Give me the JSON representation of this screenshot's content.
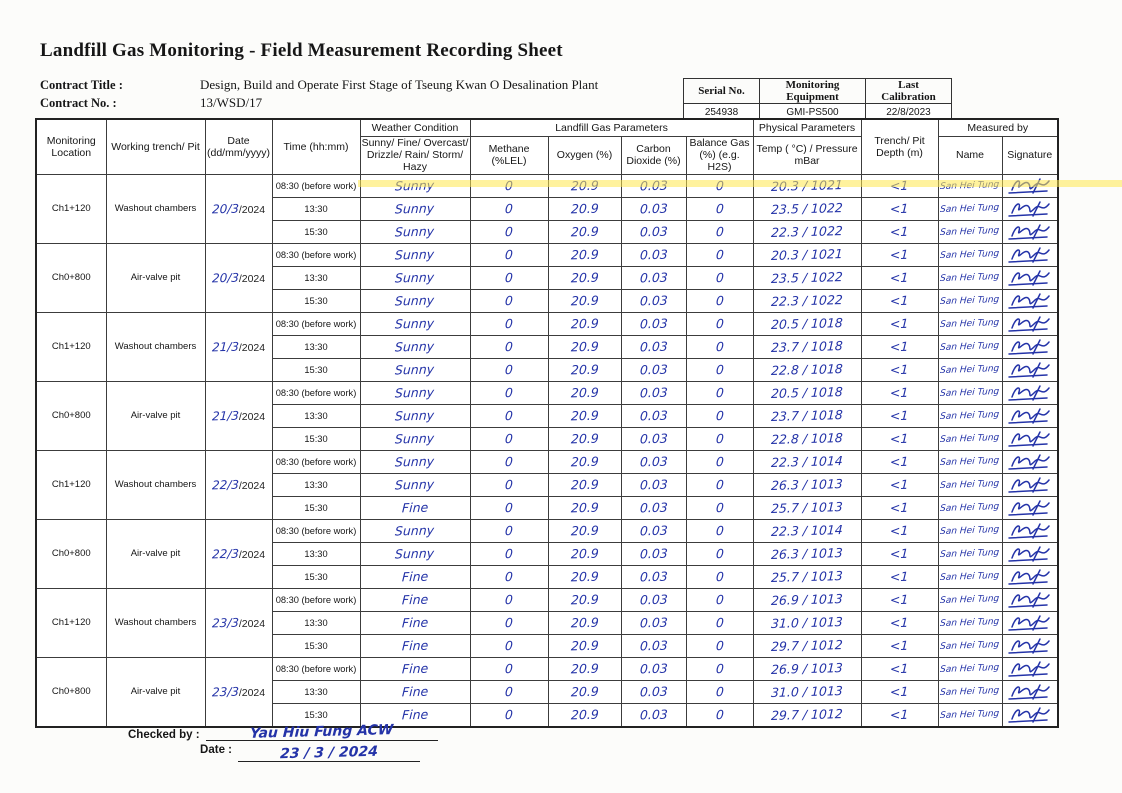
{
  "page": {
    "title": "Landfill Gas Monitoring - Field Measurement Recording Sheet"
  },
  "contract": {
    "title_label": "Contract Title :",
    "title_value": "Design, Build and Operate First Stage of Tseung Kwan O Desalination Plant",
    "no_label": "Contract No. :",
    "no_value": "13/WSD/17"
  },
  "equipment": {
    "serial_header": "Serial No.",
    "equipment_header": "Monitoring Equipment",
    "calibration_header": "Last Calibration",
    "serial_value": "254938",
    "equipment_value": "GMI-PS500",
    "calibration_value": "22/8/2023"
  },
  "table": {
    "headers": {
      "monitoring_location": "Monitoring Location",
      "working_trench": "Working trench/ Pit",
      "date": "Date (dd/mm/yyyy)",
      "time": "Time (hh:mm)",
      "weather": "Weather Condition",
      "weather_sub": "Sunny/ Fine/ Overcast/ Drizzle/ Rain/ Storm/ Hazy",
      "gas_group": "Landfill Gas Parameters",
      "methane": "Methane (%LEL)",
      "oxygen": "Oxygen (%)",
      "co2": "Carbon Dioxide (%)",
      "balance": "Balance Gas (%) (e.g. H2S)",
      "physical_group": "Physical Parameters",
      "temp_pressure": "Temp ( °C) / Pressure mBar",
      "depth": "Trench/ Pit Depth (m)",
      "measured_by": "Measured by",
      "name": "Name",
      "signature": "Signature"
    },
    "date_print": "/2024",
    "groups": [
      {
        "location": "Ch1+120",
        "trench": "Washout chambers",
        "date_hand": "20/3",
        "rows": [
          {
            "time": "08:30 (before work)",
            "weather": "Sunny",
            "methane": "0",
            "oxygen": "20.9",
            "co2": "0.03",
            "balance": "0",
            "temp_pressure": "20.3 / 1021",
            "depth": "<1",
            "name": "San Hei Tung"
          },
          {
            "time": "13:30",
            "weather": "Sunny",
            "methane": "0",
            "oxygen": "20.9",
            "co2": "0.03",
            "balance": "0",
            "temp_pressure": "23.5 / 1022",
            "depth": "<1",
            "name": "San Hei Tung"
          },
          {
            "time": "15:30",
            "weather": "Sunny",
            "methane": "0",
            "oxygen": "20.9",
            "co2": "0.03",
            "balance": "0",
            "temp_pressure": "22.3 / 1022",
            "depth": "<1",
            "name": "San Hei Tung"
          }
        ]
      },
      {
        "location": "Ch0+800",
        "trench": "Air-valve pit",
        "date_hand": "20/3",
        "rows": [
          {
            "time": "08:30 (before work)",
            "weather": "Sunny",
            "methane": "0",
            "oxygen": "20.9",
            "co2": "0.03",
            "balance": "0",
            "temp_pressure": "20.3 / 1021",
            "depth": "<1",
            "name": "San Hei Tung"
          },
          {
            "time": "13:30",
            "weather": "Sunny",
            "methane": "0",
            "oxygen": "20.9",
            "co2": "0.03",
            "balance": "0",
            "temp_pressure": "23.5 / 1022",
            "depth": "<1",
            "name": "San Hei Tung"
          },
          {
            "time": "15:30",
            "weather": "Sunny",
            "methane": "0",
            "oxygen": "20.9",
            "co2": "0.03",
            "balance": "0",
            "temp_pressure": "22.3 / 1022",
            "depth": "<1",
            "name": "San Hei Tung"
          }
        ]
      },
      {
        "location": "Ch1+120",
        "trench": "Washout chambers",
        "date_hand": "21/3",
        "rows": [
          {
            "time": "08:30 (before work)",
            "weather": "Sunny",
            "methane": "0",
            "oxygen": "20.9",
            "co2": "0.03",
            "balance": "0",
            "temp_pressure": "20.5 / 1018",
            "depth": "<1",
            "name": "San Hei Tung"
          },
          {
            "time": "13:30",
            "weather": "Sunny",
            "methane": "0",
            "oxygen": "20.9",
            "co2": "0.03",
            "balance": "0",
            "temp_pressure": "23.7 / 1018",
            "depth": "<1",
            "name": "San Hei Tung"
          },
          {
            "time": "15:30",
            "weather": "Sunny",
            "methane": "0",
            "oxygen": "20.9",
            "co2": "0.03",
            "balance": "0",
            "temp_pressure": "22.8 / 1018",
            "depth": "<1",
            "name": "San Hei Tung"
          }
        ]
      },
      {
        "location": "Ch0+800",
        "trench": "Air-valve pit",
        "date_hand": "21/3",
        "rows": [
          {
            "time": "08:30 (before work)",
            "weather": "Sunny",
            "methane": "0",
            "oxygen": "20.9",
            "co2": "0.03",
            "balance": "0",
            "temp_pressure": "20.5 / 1018",
            "depth": "<1",
            "name": "San Hei Tung"
          },
          {
            "time": "13:30",
            "weather": "Sunny",
            "methane": "0",
            "oxygen": "20.9",
            "co2": "0.03",
            "balance": "0",
            "temp_pressure": "23.7 / 1018",
            "depth": "<1",
            "name": "San Hei Tung"
          },
          {
            "time": "15:30",
            "weather": "Sunny",
            "methane": "0",
            "oxygen": "20.9",
            "co2": "0.03",
            "balance": "0",
            "temp_pressure": "22.8 / 1018",
            "depth": "<1",
            "name": "San Hei Tung"
          }
        ]
      },
      {
        "location": "Ch1+120",
        "trench": "Washout chambers",
        "date_hand": "22/3",
        "rows": [
          {
            "time": "08:30 (before work)",
            "weather": "Sunny",
            "methane": "0",
            "oxygen": "20.9",
            "co2": "0.03",
            "balance": "0",
            "temp_pressure": "22.3 / 1014",
            "depth": "<1",
            "name": "San Hei Tung"
          },
          {
            "time": "13:30",
            "weather": "Sunny",
            "methane": "0",
            "oxygen": "20.9",
            "co2": "0.03",
            "balance": "0",
            "temp_pressure": "26.3 / 1013",
            "depth": "<1",
            "name": "San Hei Tung"
          },
          {
            "time": "15:30",
            "weather": "Fine",
            "methane": "0",
            "oxygen": "20.9",
            "co2": "0.03",
            "balance": "0",
            "temp_pressure": "25.7 / 1013",
            "depth": "<1",
            "name": "San Hei Tung"
          }
        ]
      },
      {
        "location": "Ch0+800",
        "trench": "Air-valve pit",
        "date_hand": "22/3",
        "rows": [
          {
            "time": "08:30 (before work)",
            "weather": "Sunny",
            "methane": "0",
            "oxygen": "20.9",
            "co2": "0.03",
            "balance": "0",
            "temp_pressure": "22.3 / 1014",
            "depth": "<1",
            "name": "San Hei Tung"
          },
          {
            "time": "13:30",
            "weather": "Sunny",
            "methane": "0",
            "oxygen": "20.9",
            "co2": "0.03",
            "balance": "0",
            "temp_pressure": "26.3 / 1013",
            "depth": "<1",
            "name": "San Hei Tung"
          },
          {
            "time": "15:30",
            "weather": "Fine",
            "methane": "0",
            "oxygen": "20.9",
            "co2": "0.03",
            "balance": "0",
            "temp_pressure": "25.7 / 1013",
            "depth": "<1",
            "name": "San Hei Tung"
          }
        ]
      },
      {
        "location": "Ch1+120",
        "trench": "Washout chambers",
        "date_hand": "23/3",
        "rows": [
          {
            "time": "08:30 (before work)",
            "weather": "Fine",
            "methane": "0",
            "oxygen": "20.9",
            "co2": "0.03",
            "balance": "0",
            "temp_pressure": "26.9 / 1013",
            "depth": "<1",
            "name": "San Hei Tung"
          },
          {
            "time": "13:30",
            "weather": "Fine",
            "methane": "0",
            "oxygen": "20.9",
            "co2": "0.03",
            "balance": "0",
            "temp_pressure": "31.0 / 1013",
            "depth": "<1",
            "name": "San Hei Tung"
          },
          {
            "time": "15:30",
            "weather": "Fine",
            "methane": "0",
            "oxygen": "20.9",
            "co2": "0.03",
            "balance": "0",
            "temp_pressure": "29.7 / 1012",
            "depth": "<1",
            "name": "San Hei Tung"
          }
        ]
      },
      {
        "location": "Ch0+800",
        "trench": "Air-valve pit",
        "date_hand": "23/3",
        "rows": [
          {
            "time": "08:30 (before work)",
            "weather": "Fine",
            "methane": "0",
            "oxygen": "20.9",
            "co2": "0.03",
            "balance": "0",
            "temp_pressure": "26.9 / 1013",
            "depth": "<1",
            "name": "San Hei Tung"
          },
          {
            "time": "13:30",
            "weather": "Fine",
            "methane": "0",
            "oxygen": "20.9",
            "co2": "0.03",
            "balance": "0",
            "temp_pressure": "31.0 / 1013",
            "depth": "<1",
            "name": "San Hei Tung"
          },
          {
            "time": "15:30",
            "weather": "Fine",
            "methane": "0",
            "oxygen": "20.9",
            "co2": "0.03",
            "balance": "0",
            "temp_pressure": "29.7 / 1012",
            "depth": "<1",
            "name": "San Hei Tung"
          }
        ]
      }
    ]
  },
  "footer": {
    "checked_by_label": "Checked by :",
    "checked_by_value": "Yau Hiu Fung ACW",
    "date_label": "Date :",
    "date_value": "23 / 3 / 2024"
  },
  "colors": {
    "ink": "#2433a8",
    "highlight": "#ffe84d"
  }
}
